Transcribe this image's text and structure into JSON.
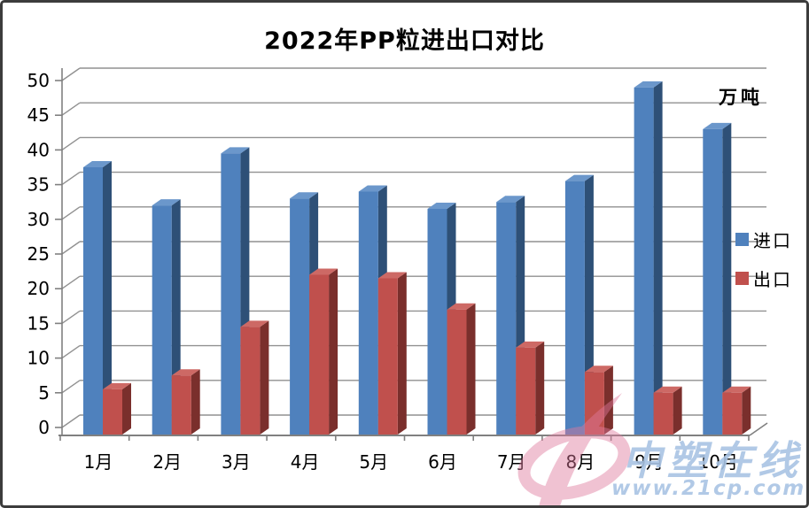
{
  "window": {
    "background": "#ffffff",
    "border_color": "#3c3c3c"
  },
  "chart_data": {
    "type": "bar",
    "style": "3d-clustered",
    "title": "2022年PP粒进出口对比",
    "unit_label": "万吨",
    "xlabel": "",
    "ylabel": "",
    "categories": [
      "1月",
      "2月",
      "3月",
      "4月",
      "5月",
      "6月",
      "7月",
      "8月",
      "9月",
      "10月"
    ],
    "series": [
      {
        "name": "进口",
        "color": "#4f81bd",
        "side_color": "#2e5077",
        "top_color": "#6b97cb",
        "values": [
          37.5,
          32,
          39.5,
          33,
          34,
          31.5,
          32.5,
          35.5,
          49,
          43
        ]
      },
      {
        "name": "出口",
        "color": "#c0504d",
        "side_color": "#7a2f2c",
        "top_color": "#cd6965",
        "values": [
          5.5,
          7.5,
          14.5,
          22,
          21.5,
          17,
          11.5,
          8,
          5,
          5
        ]
      }
    ],
    "ylim": [
      0,
      50
    ],
    "yticks": [
      0,
      5,
      10,
      15,
      20,
      25,
      30,
      35,
      40,
      45,
      50
    ],
    "grid": true,
    "gridline_color": "#919191",
    "axis_color": "#808080",
    "legend_position": "right"
  },
  "watermark": {
    "brand": "中塑在线",
    "url": "www.21cp.com",
    "text_color": "#a9c4e4",
    "logo_color": "#e07a9d"
  }
}
